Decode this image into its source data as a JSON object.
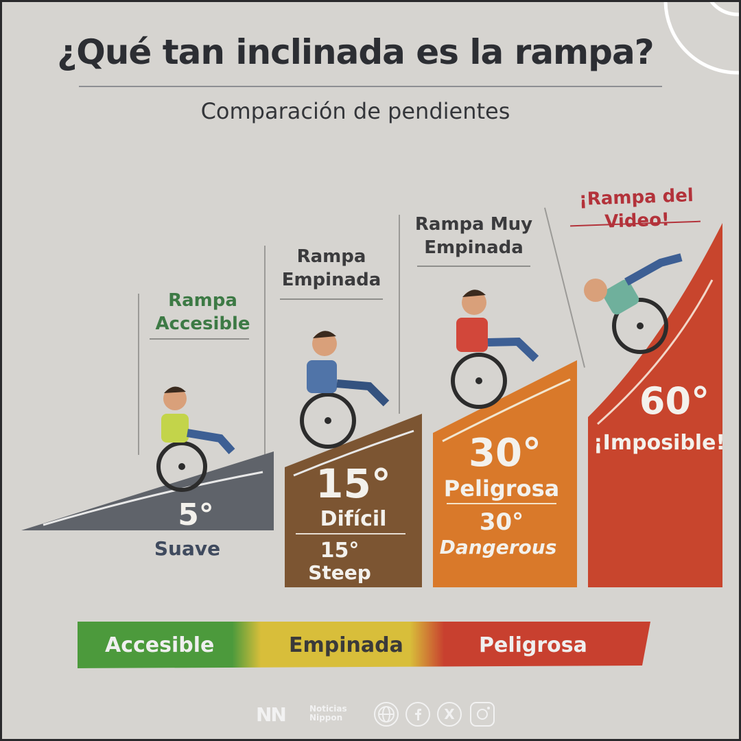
{
  "header": {
    "title": "¿Qué tan inclinada es la rampa?",
    "subtitle": "Comparación de pendientes"
  },
  "ramps": [
    {
      "label_line1": "Rampa",
      "label_line2": "Accesible",
      "degree": "5°",
      "desc": "Suave",
      "color": "#5f636a",
      "label_color": "#3d7a45"
    },
    {
      "label_line1": "Rampa",
      "label_line2": "Empinada",
      "degree": "15°",
      "desc": "Difícil",
      "extra_degree": "15°",
      "extra_desc": "Steep",
      "color": "#7c5532",
      "label_color": "#3b3b3d"
    },
    {
      "label_line1": "Rampa Muy",
      "label_line2": "Empinada",
      "degree": "30°",
      "desc": "Peligrosa",
      "extra_degree": "30°",
      "extra_desc": "Dangerous",
      "color": "#d9792a",
      "label_color": "#3b3b3d"
    },
    {
      "label_line1": "¡Rampa del Video!",
      "degree": "60°",
      "desc": "¡Imposible!",
      "color": "#c8452d",
      "label_color": "#b3323a"
    }
  ],
  "legend": {
    "accesible": "Accesible",
    "empinada": "Empinada",
    "peligrosa": "Peligrosa",
    "colors": {
      "green": "#4c9a3c",
      "yellow": "#d8be3a",
      "red": "#c8402f"
    }
  },
  "footer": {
    "brand_mark": "NN",
    "brand_line1": "Noticias",
    "brand_line2": "Nippon",
    "x_label": "X"
  }
}
